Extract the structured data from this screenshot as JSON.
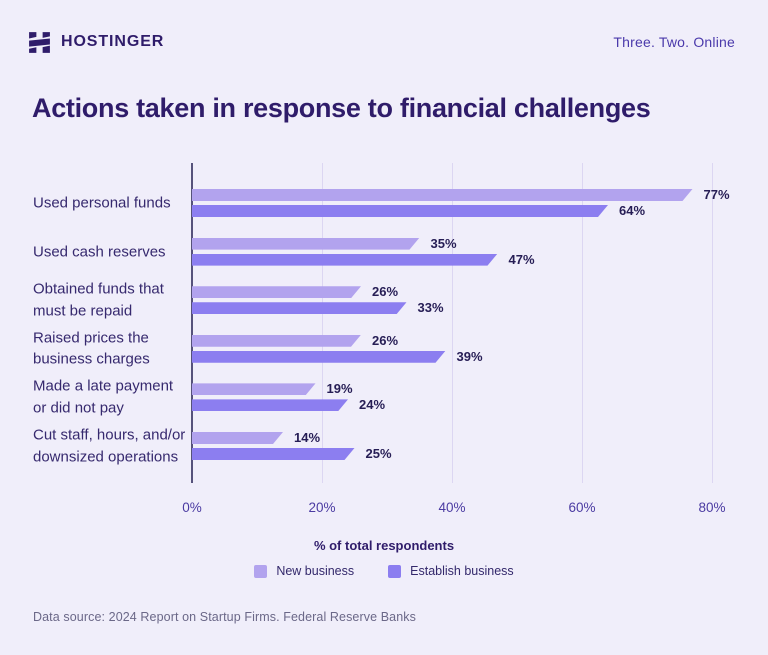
{
  "header": {
    "brand": "HOSTINGER",
    "tagline": "Three. Two. Online",
    "brand_color": "#2f1c6a"
  },
  "chart_data": {
    "type": "bar",
    "orientation": "horizontal",
    "title": "Actions taken in response to financial challenges",
    "categories": [
      "Used personal funds",
      "Used cash reserves",
      "Obtained funds that\nmust be repaid",
      "Raised prices the\nbusiness charges",
      "Made a late payment\nor did not pay",
      "Cut staff, hours, and/or\ndownsized operations"
    ],
    "series": [
      {
        "name": "New business",
        "color": "#b2a3ee",
        "values": [
          77,
          35,
          26,
          26,
          19,
          14
        ]
      },
      {
        "name": "Establish business",
        "color": "#8c7ef0",
        "values": [
          64,
          47,
          33,
          39,
          24,
          25
        ]
      }
    ],
    "value_suffix": "%",
    "xlabel": "% of total respondents",
    "x_ticks": [
      0,
      20,
      40,
      60,
      80
    ],
    "tick_suffix": "%",
    "xlim": [
      0,
      80
    ],
    "grid": true,
    "legend_position": "bottom",
    "grid_color": "#dcd6f2",
    "axis_color": "#56527b"
  },
  "footer": {
    "source": "Data source: 2024 Report on Startup Firms. Federal Reserve Banks"
  }
}
